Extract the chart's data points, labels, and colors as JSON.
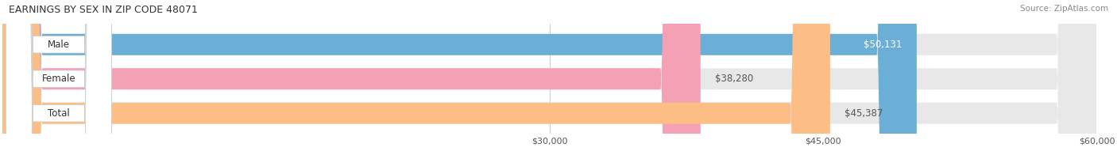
{
  "title": "EARNINGS BY SEX IN ZIP CODE 48071",
  "source": "Source: ZipAtlas.com",
  "categories": [
    "Male",
    "Female",
    "Total"
  ],
  "values": [
    50131,
    38280,
    45387
  ],
  "bar_colors": [
    "#6baed6",
    "#f4a0b5",
    "#fdbe85"
  ],
  "track_color": "#e8e8e8",
  "xmin": 0,
  "xmax": 60000,
  "xticks": [
    30000,
    45000,
    60000
  ],
  "xtick_labels": [
    "$30,000",
    "$45,000",
    "$60,000"
  ],
  "bar_height": 0.62,
  "title_fontsize": 9.0,
  "source_fontsize": 7.5,
  "tick_fontsize": 8.0,
  "label_fontsize": 8.5,
  "value_fontsize": 8.5
}
